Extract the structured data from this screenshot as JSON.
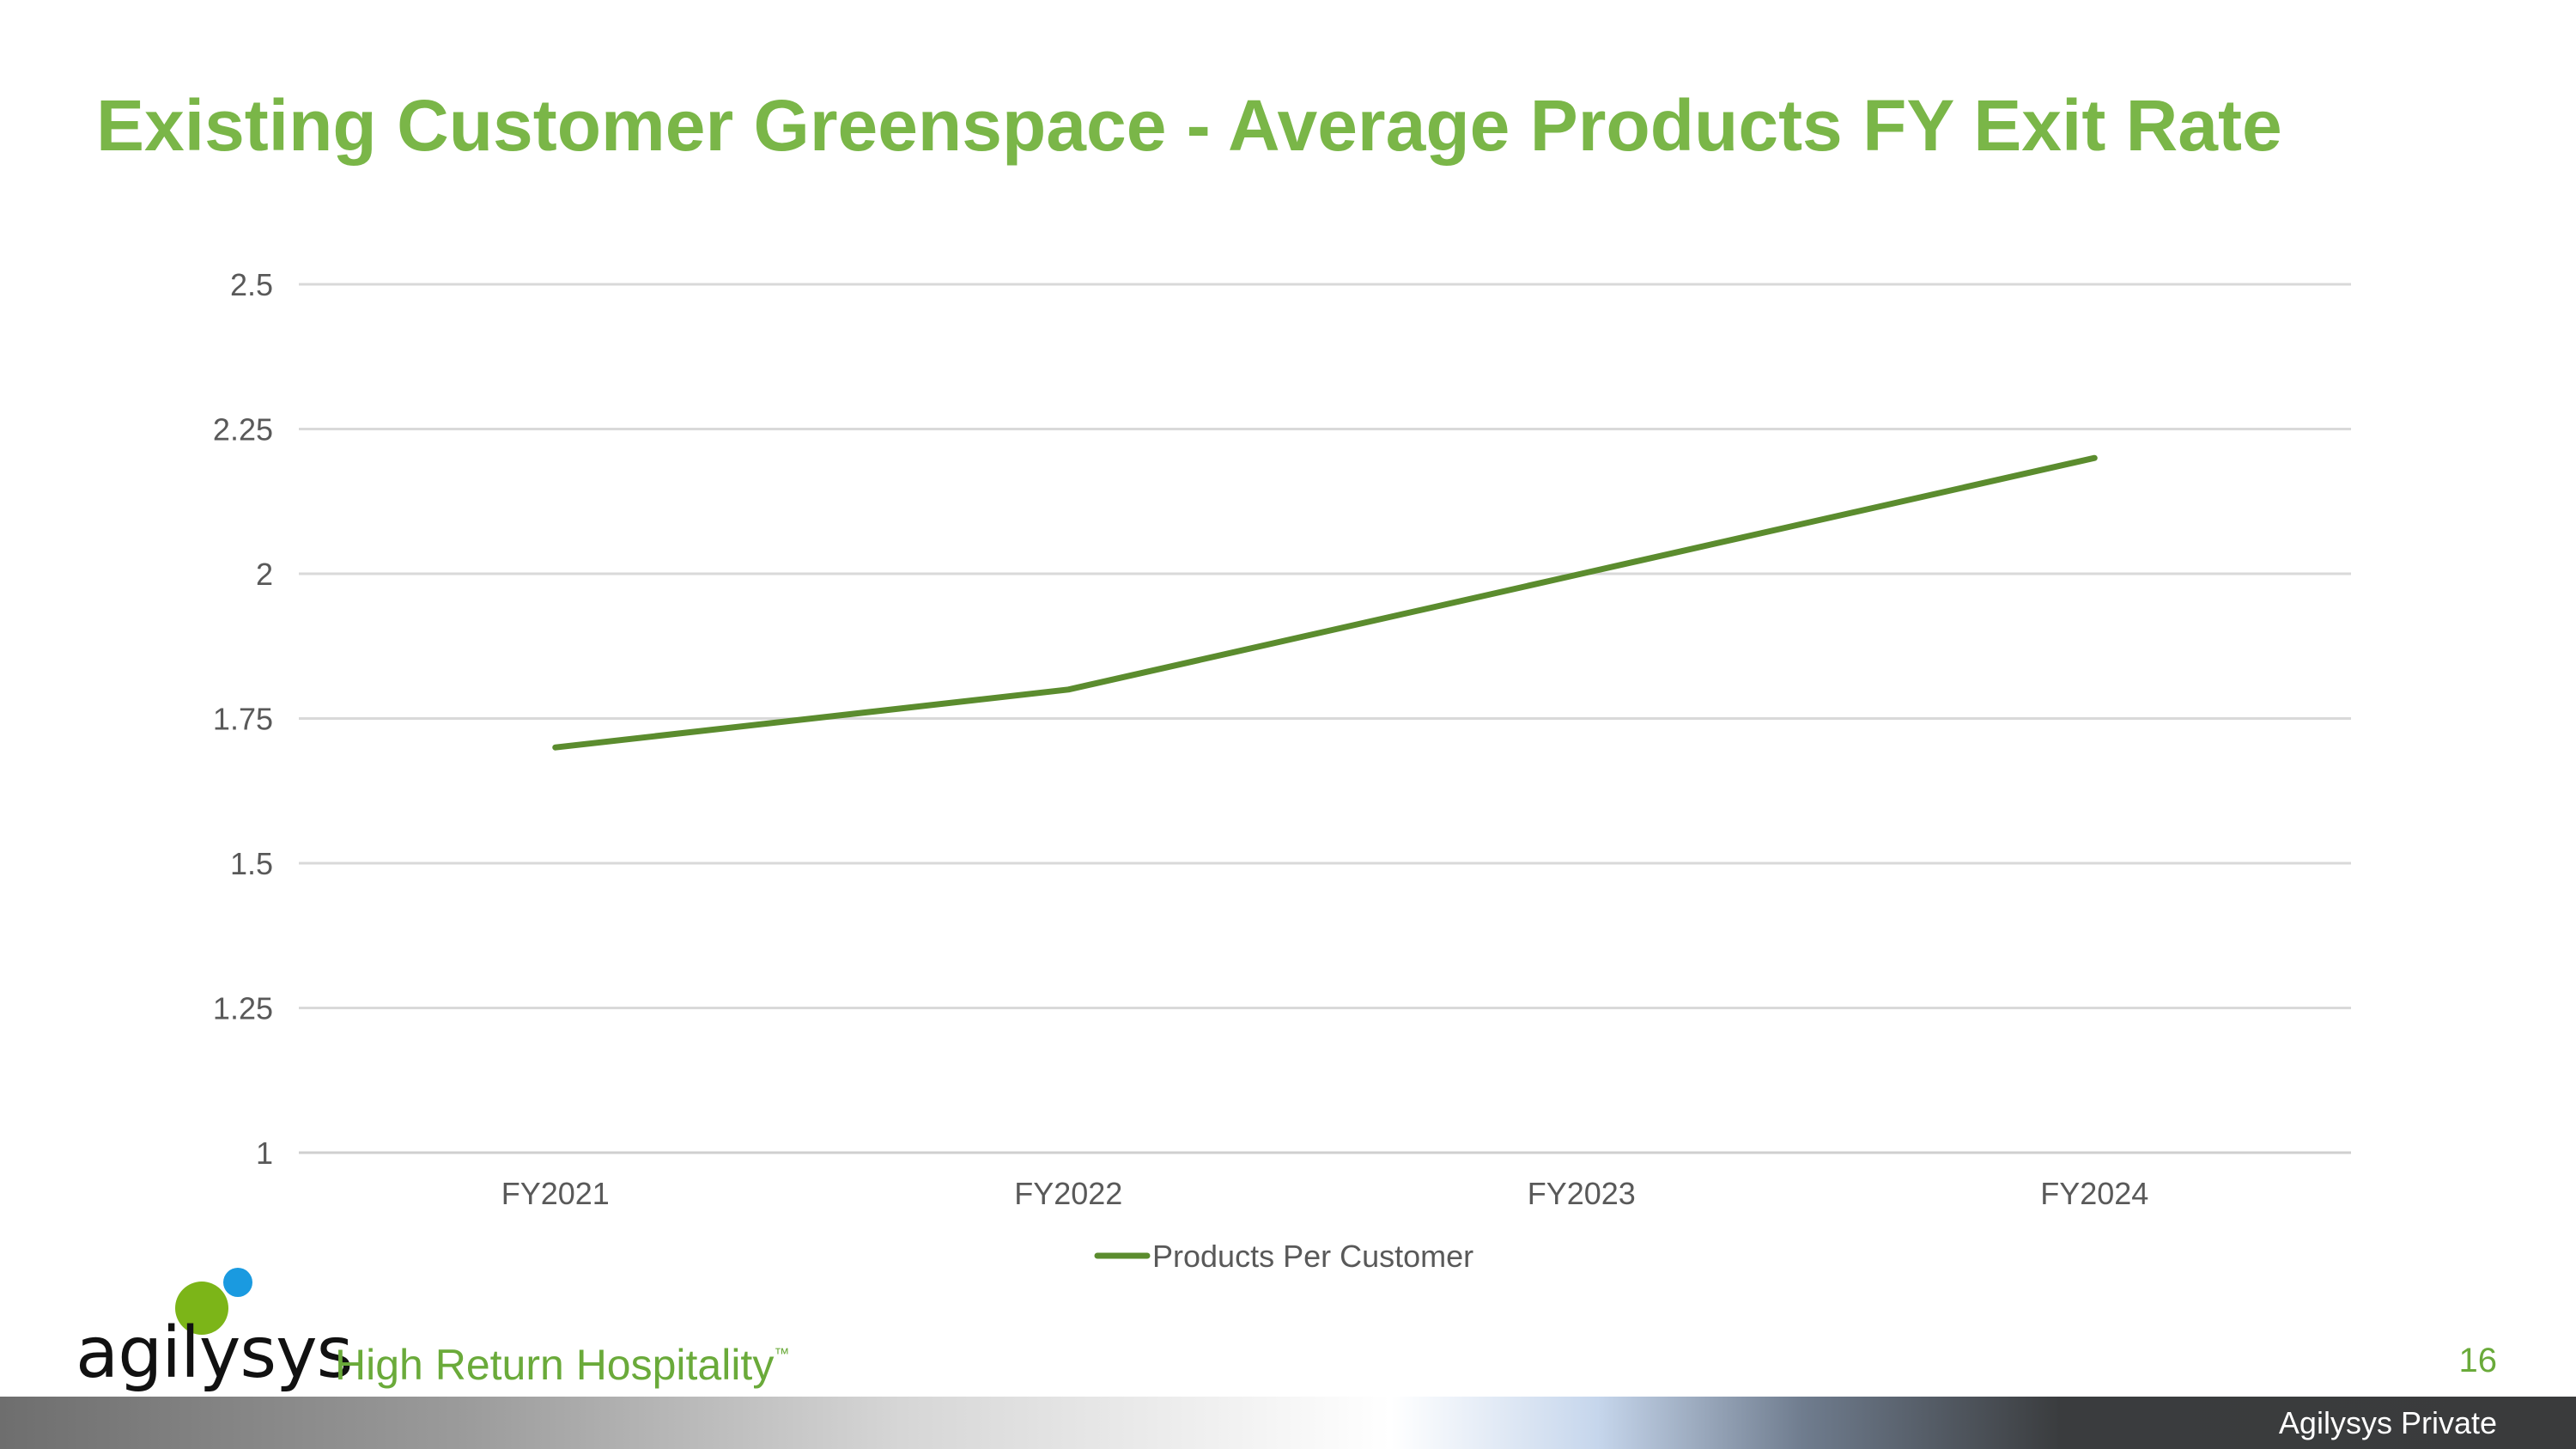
{
  "slide": {
    "title": "Existing Customer Greenspace - Average Products FY Exit Rate",
    "page_number": "16",
    "footer_text": "Agilysys Private"
  },
  "logo": {
    "wordmark": "agilysys",
    "tagline": "High Return Hospitality",
    "tagline_mark": "™",
    "dot_green_color": "#7cb518",
    "dot_blue_color": "#1a9ae0"
  },
  "chart_data": {
    "type": "line",
    "categories": [
      "FY2021",
      "FY2022",
      "FY2023",
      "FY2024"
    ],
    "series": [
      {
        "name": "Products Per Customer",
        "values": [
          1.7,
          1.8,
          2.0,
          2.2
        ],
        "color": "#5b8c2e"
      }
    ],
    "ylim": [
      1,
      2.5
    ],
    "yticks": [
      1,
      1.25,
      1.5,
      1.75,
      2,
      2.25,
      2.5
    ],
    "ytick_labels": [
      "1",
      "1.25",
      "1.5",
      "1.75",
      "2",
      "2.25",
      "2.5"
    ],
    "grid": true,
    "legend_position": "bottom",
    "title": "",
    "xlabel": "",
    "ylabel": ""
  }
}
